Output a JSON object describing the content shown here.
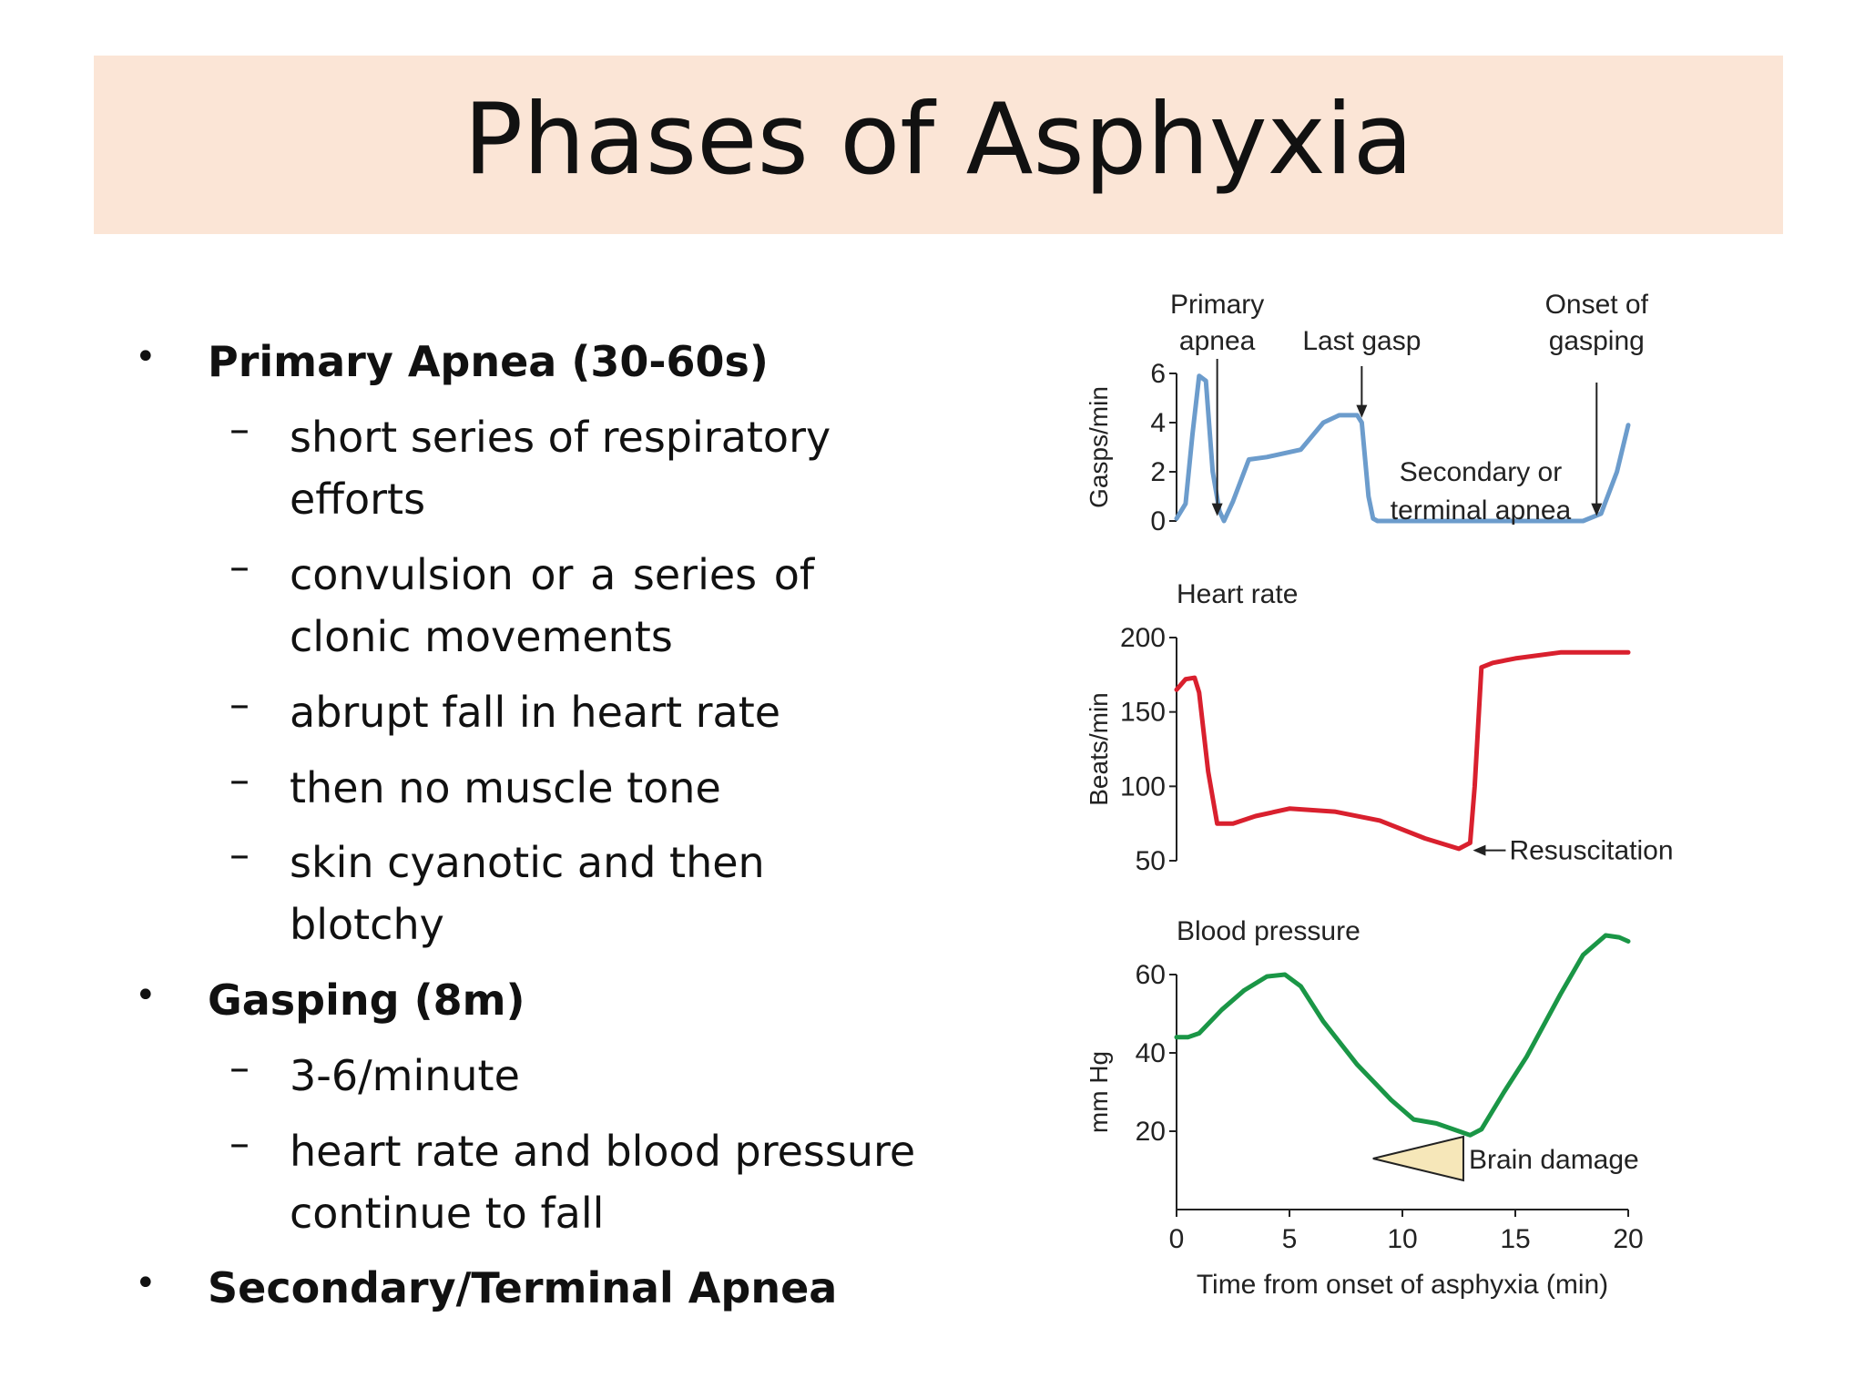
{
  "title": "Phases of Asphyxia",
  "bullets": [
    {
      "label": "Primary Apnea (30-60s)",
      "subs": [
        [
          "short series of respiratory",
          "efforts"
        ],
        [
          "convulsion  or  a  series  of",
          "clonic movements"
        ],
        [
          "abrupt  fall  in  heart  rate"
        ],
        [
          "then no  muscle  tone"
        ],
        [
          "skin cyanotic  and  then",
          "blotchy"
        ]
      ]
    },
    {
      "label": "Gasping (8m)",
      "subs": [
        [
          "3-6/minute"
        ],
        [
          "heart rate and blood pressure",
          "continue to fall"
        ]
      ]
    },
    {
      "label": "Secondary/Terminal Apnea",
      "subs": []
    }
  ],
  "bullet_symbol": "•",
  "dash_symbol": "–",
  "colors": {
    "title_band": "#fbe5d6",
    "gasps": "#6c9ccc",
    "heart_rate": "#d9202e",
    "blood_pressure": "#1a9646",
    "brain_damage_fill": "#f6e7b9"
  },
  "chart_data": [
    {
      "type": "line",
      "ylabel": "Gasps/min",
      "ylim": [
        0,
        6
      ],
      "yticks": [
        "0",
        "2",
        "4",
        "6"
      ],
      "x": [
        0,
        0.4,
        0.7,
        1.0,
        1.3,
        1.6,
        1.9,
        2.1,
        2.5,
        3.2,
        4.0,
        5.5,
        6.5,
        7.2,
        8.0,
        8.2,
        8.5,
        8.7,
        8.9,
        18.0,
        18.8,
        19.5,
        20.0
      ],
      "values": [
        0.1,
        0.7,
        3.5,
        5.9,
        5.7,
        2.0,
        0.4,
        0.0,
        0.8,
        2.5,
        2.6,
        2.9,
        4.0,
        4.3,
        4.3,
        4.0,
        1.0,
        0.1,
        0.0,
        0.0,
        0.3,
        2.0,
        3.9
      ],
      "annotations": [
        {
          "text": [
            "Primary",
            "apnea"
          ],
          "x": 1.8
        },
        {
          "text": [
            "Last gasp"
          ],
          "x": 8.2
        },
        {
          "text": [
            "Onset of",
            "gasping"
          ],
          "x": 18.6
        },
        {
          "text": [
            "Secondary or",
            "terminal apnea"
          ]
        }
      ]
    },
    {
      "type": "line",
      "title": "Heart rate",
      "ylabel": "Beats/min",
      "ylim": [
        50,
        200
      ],
      "yticks": [
        "50",
        "100",
        "150",
        "200"
      ],
      "x": [
        0,
        0.4,
        0.8,
        1.0,
        1.4,
        1.8,
        2.5,
        3.5,
        5,
        7,
        9,
        11,
        12.5,
        13.0,
        13.2,
        13.5,
        14.0,
        15.0,
        17,
        18,
        20
      ],
      "values": [
        165,
        172,
        173,
        163,
        110,
        75,
        75,
        80,
        85,
        83,
        77,
        65,
        58,
        62,
        100,
        180,
        183,
        186,
        190,
        190,
        190
      ],
      "annotations": [
        {
          "text": [
            "Resuscitation"
          ],
          "x": 12.8,
          "y": 57
        }
      ]
    },
    {
      "type": "line",
      "title": "Blood pressure",
      "ylabel": "mm Hg",
      "xlabel": "Time from onset of asphyxia (min)",
      "xlim": [
        0,
        20
      ],
      "xticks": [
        "0",
        "5",
        "10",
        "15",
        "20"
      ],
      "ylim": [
        0,
        60
      ],
      "yticks": [
        "20",
        "40",
        "60"
      ],
      "x": [
        0,
        0.5,
        1,
        2,
        3,
        4,
        4.8,
        5.5,
        6.5,
        8,
        9.5,
        10.5,
        11.5,
        12.5,
        13.0,
        13.5,
        14.5,
        15.5,
        17,
        18,
        19,
        19.6,
        20
      ],
      "values": [
        44,
        44,
        45,
        51,
        56,
        59.5,
        60,
        57,
        48,
        37,
        28,
        23,
        22,
        20,
        19,
        20.5,
        30,
        39,
        55,
        65,
        70,
        69.5,
        68.5
      ],
      "annotations": [
        {
          "text": [
            "Brain damage"
          ]
        }
      ]
    }
  ]
}
